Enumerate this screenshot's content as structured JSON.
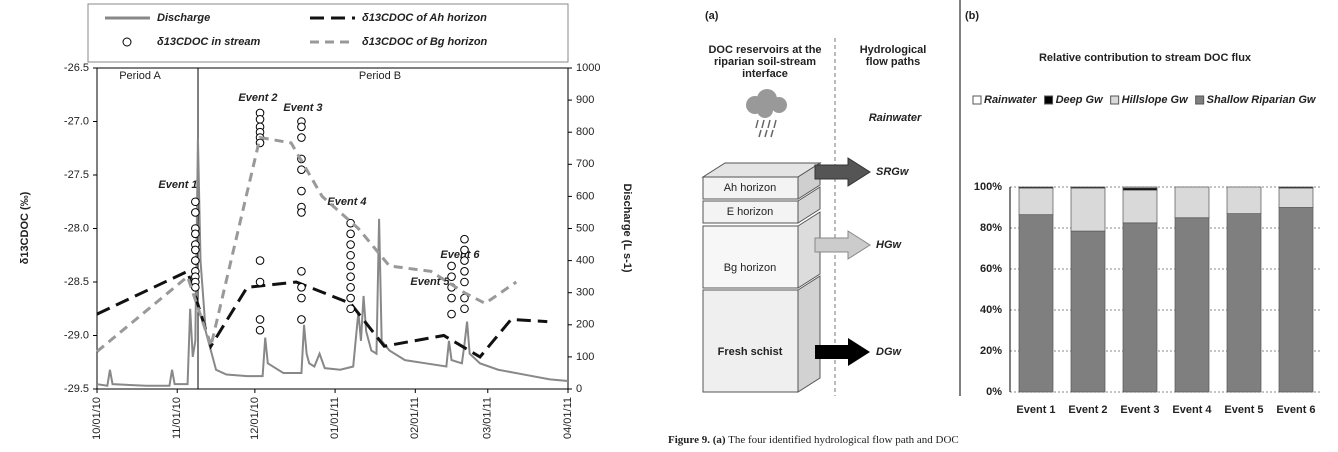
{
  "chart_data": [
    {
      "type": "line",
      "y_label": "δ13CDOC (‰)",
      "y2_label": "Discharge (L s-1)",
      "xlim": [
        "10/01/10",
        "04/01/11"
      ],
      "xticks": [
        "10/01/10",
        "11/01/10",
        "12/01/10",
        "01/01/11",
        "02/01/11",
        "03/01/11",
        "04/01/11"
      ],
      "ylim": [
        -29.5,
        -26.5
      ],
      "yticks": [
        -29.5,
        {
          "value": -29,
          "label": "-29.0"
        },
        -28.5,
        {
          "value": -28,
          "label": "-28.0"
        },
        -27.5,
        {
          "value": -27,
          "label": "-27.0"
        },
        -26.5
      ],
      "y2lim": [
        0,
        1000
      ],
      "y2ticks": [
        0,
        100,
        200,
        300,
        400,
        500,
        600,
        700,
        800,
        900,
        1000
      ],
      "annotations": [
        "Period A",
        "Period B",
        "Event 1",
        "Event 2",
        "Event 3",
        "Event 4",
        "Event 5",
        "Event 6"
      ],
      "series": [
        {
          "name": "Discharge",
          "color": "#888888",
          "mode": "line",
          "dash": "none",
          "axis": "y2",
          "x": [
            "10/01/10",
            "10/05/10",
            "10/06/10",
            "10/07/10",
            "10/20/10",
            "10/29/10",
            "10/30/10",
            "10/31/10",
            "11/05/10",
            "11/06/10",
            "11/07/10",
            "11/08/10",
            "11/09/10",
            "11/10/10",
            "11/12/10",
            "11/14/10",
            "11/16/10",
            "11/20/10",
            "11/28/10",
            "12/04/10",
            "12/05/10",
            "12/06/10",
            "12/12/10",
            "12/19/10",
            "12/20/10",
            "12/21/10",
            "12/22/10",
            "12/24/10",
            "12/26/10",
            "12/28/10",
            "01/03/11",
            "01/08/11",
            "01/10/11",
            "01/11/11",
            "01/12/11",
            "01/13/11",
            "01/15/11",
            "01/17/11",
            "01/18/11",
            "01/19/11",
            "01/22/11",
            "01/28/11",
            "02/05/11",
            "02/13/11",
            "02/14/11",
            "02/15/11",
            "02/19/11",
            "02/20/11",
            "02/21/11",
            "02/22/11",
            "02/26/11",
            "03/05/11",
            "03/15/11",
            "03/25/11",
            "04/01/11"
          ],
          "values": [
            15,
            10,
            60,
            15,
            10,
            10,
            60,
            15,
            15,
            250,
            100,
            150,
            780,
            400,
            180,
            120,
            60,
            45,
            40,
            40,
            160,
            80,
            50,
            50,
            200,
            110,
            80,
            70,
            110,
            65,
            60,
            70,
            240,
            150,
            290,
            180,
            120,
            110,
            530,
            150,
            120,
            90,
            80,
            70,
            150,
            90,
            80,
            140,
            210,
            110,
            80,
            60,
            45,
            30,
            25
          ]
        },
        {
          "name": "δ13CDOC of Ah horizon",
          "color": "#111111",
          "mode": "line",
          "dash": "14,7",
          "axis": "y",
          "x": [
            "10/01/10",
            "11/05/10",
            "11/14/10",
            "11/28/10",
            "12/17/10",
            "01/07/11",
            "01/20/11",
            "02/12/11",
            "02/26/11",
            "03/10/11",
            "03/24/11"
          ],
          "values": [
            -28.8,
            -28.4,
            -29.1,
            -28.55,
            -28.5,
            -28.7,
            -29.1,
            -29.0,
            -29.2,
            -28.85,
            -28.87
          ]
        },
        {
          "name": "δ13CDOC in stream",
          "color": "#000000",
          "mode": "markers",
          "axis": "y",
          "x": [
            "11/08/10",
            "11/08/10",
            "11/08/10",
            "11/08/10",
            "11/08/10",
            "11/08/10",
            "11/08/10",
            "11/08/10",
            "11/08/10",
            "11/08/10",
            "11/08/10",
            "12/03/10",
            "12/03/10",
            "12/03/10",
            "12/03/10",
            "12/03/10",
            "12/03/10",
            "12/03/10",
            "12/03/10",
            "12/03/10",
            "12/03/10",
            "12/19/10",
            "12/19/10",
            "12/19/10",
            "12/19/10",
            "12/19/10",
            "12/19/10",
            "12/19/10",
            "12/19/10",
            "12/19/10",
            "12/19/10",
            "12/19/10",
            "12/19/10",
            "01/07/11",
            "01/07/11",
            "01/07/11",
            "01/07/11",
            "01/07/11",
            "01/07/11",
            "01/07/11",
            "01/07/11",
            "01/07/11",
            "02/15/11",
            "02/15/11",
            "02/15/11",
            "02/15/11",
            "02/15/11",
            "02/20/11",
            "02/20/11",
            "02/20/11",
            "02/20/11",
            "02/20/11",
            "02/20/11",
            "02/20/11"
          ],
          "values": [
            -27.75,
            -27.85,
            -28.0,
            -28.05,
            -28.15,
            -28.2,
            -28.3,
            -28.4,
            -28.45,
            -28.5,
            -28.55,
            -26.92,
            -26.98,
            -27.05,
            -27.1,
            -27.15,
            -27.2,
            -28.3,
            -28.5,
            -28.85,
            -28.95,
            -27.0,
            -27.05,
            -27.15,
            -27.35,
            -27.45,
            -27.65,
            -27.8,
            -27.85,
            -28.4,
            -28.55,
            -28.65,
            -28.85,
            -27.95,
            -28.05,
            -28.15,
            -28.25,
            -28.35,
            -28.45,
            -28.55,
            -28.65,
            -28.75,
            -28.35,
            -28.45,
            -28.55,
            -28.65,
            -28.8,
            -28.1,
            -28.2,
            -28.3,
            -28.4,
            -28.5,
            -28.65,
            -28.75
          ]
        },
        {
          "name": "δ13CDOC of Bg horizon",
          "color": "#999999",
          "mode": "line",
          "dash": "9,6",
          "axis": "y",
          "x": [
            "10/01/10",
            "11/05/10",
            "11/14/10",
            "12/03/10",
            "12/15/10",
            "12/27/10",
            "01/10/11",
            "01/22/11",
            "02/07/11",
            "02/20/11",
            "02/28/11",
            "03/12/11"
          ],
          "values": [
            -29.15,
            -28.45,
            -29.1,
            -27.15,
            -27.2,
            -27.7,
            -28.0,
            -28.35,
            -28.4,
            -28.6,
            -28.7,
            -28.5
          ]
        }
      ]
    },
    {
      "type": "stacked_bar",
      "panel": "(b)",
      "title": "Relative contribution to stream DOC flux",
      "categories": [
        "Event 1",
        "Event 2",
        "Event 3",
        "Event 4",
        "Event 5",
        "Event 6"
      ],
      "ylim": [
        0,
        100
      ],
      "yticks": [
        {
          "value": 0,
          "label": "0%"
        },
        {
          "value": 20,
          "label": "20%"
        },
        {
          "value": 40,
          "label": "40%"
        },
        {
          "value": 60,
          "label": "60%"
        },
        {
          "value": 80,
          "label": "80%"
        },
        {
          "value": 100,
          "label": "100%"
        }
      ],
      "grid": true,
      "series": [
        {
          "name": "Rainwater",
          "color": "#ffffff",
          "values": [
            0,
            0,
            0.5,
            0,
            0,
            0
          ]
        },
        {
          "name": "Deep Gw",
          "color": "#000000",
          "values": [
            0.5,
            0.5,
            1,
            0,
            0,
            0.5
          ]
        },
        {
          "name": "Hillslope Gw",
          "color": "#d9d9d9",
          "values": [
            13,
            21,
            16,
            15,
            13,
            9.5
          ]
        },
        {
          "name": "Shallow Riparian Gw",
          "color": "#7f7f7f",
          "values": [
            86.5,
            78.5,
            82.5,
            85,
            87,
            90
          ]
        }
      ]
    }
  ],
  "diagram": {
    "panel": "(a)",
    "header_left": [
      "DOC reservoirs at the",
      "riparian soil-stream",
      "interface"
    ],
    "header_right": [
      "Hydrological",
      "flow paths"
    ],
    "rain": "Rainwater",
    "layers": [
      "Ah horizon",
      "E horizon",
      "Bg horizon",
      "Fresh schist"
    ],
    "flows": [
      "SRGw",
      "HGw",
      "DGw"
    ]
  },
  "caption": {
    "label": "Figure 9.",
    "panel": "(a)",
    "text": "The four identified hydrological flow path and DOC"
  }
}
